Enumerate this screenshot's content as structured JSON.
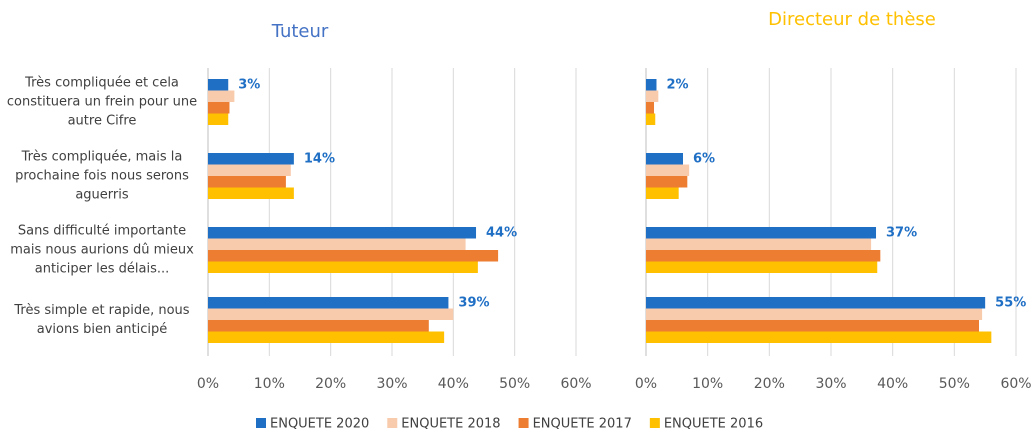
{
  "chart_data": [
    {
      "type": "hbar",
      "title": "Tuteur",
      "categories": [
        "Très compliquée et cela constituera un frein pour une autre Cifre",
        "Très compliquée, mais la prochaine fois nous serons aguerris",
        "Sans difficulté importante mais nous aurions dû mieux anticiper les délais...",
        "Très simple et rapide, nous avions bien anticipé"
      ],
      "series": [
        {
          "name": "ENQUETE 2020",
          "color": "#1f6fc5",
          "values": [
            3.3,
            14,
            43.7,
            39.2
          ],
          "value_labels": [
            "3%",
            "14%",
            "44%",
            "39%"
          ]
        },
        {
          "name": "ENQUETE 2018",
          "color": "#f8cbad",
          "values": [
            4.3,
            13.5,
            42,
            40
          ]
        },
        {
          "name": "ENQUETE 2017",
          "color": "#ed7d31",
          "values": [
            3.5,
            12.7,
            47.3,
            36
          ]
        },
        {
          "name": "ENQUETE 2016",
          "color": "#ffc000",
          "values": [
            3.3,
            14,
            44,
            38.5
          ]
        }
      ],
      "xlim": [
        0,
        60
      ],
      "xticks": [
        {
          "value": 0,
          "label": "0%"
        },
        {
          "value": 10,
          "label": "10%"
        },
        {
          "value": 20,
          "label": "20%"
        },
        {
          "value": 30,
          "label": "30%"
        },
        {
          "value": 40,
          "label": "40%"
        },
        {
          "value": 50,
          "label": "50%"
        },
        {
          "value": 60,
          "label": "60%"
        }
      ],
      "grid": true,
      "legend": "bottom",
      "title_color": "#4472c4"
    },
    {
      "type": "hbar",
      "title": "Directeur de thèse",
      "series": [
        {
          "color": "#1f6fc5",
          "values": [
            1.7,
            6,
            37.3,
            55
          ],
          "value_labels": [
            "2%",
            "6%",
            "37%",
            "55%"
          ]
        },
        {
          "color": "#f8cbad",
          "values": [
            2,
            7,
            36.5,
            54.5
          ]
        },
        {
          "color": "#ed7d31",
          "values": [
            1.3,
            6.7,
            38,
            54
          ]
        },
        {
          "color": "#ffc000",
          "values": [
            1.5,
            5.3,
            37.5,
            56
          ]
        }
      ],
      "xlim": [
        0,
        60
      ],
      "xticks": [
        {
          "value": 0,
          "label": "0%"
        },
        {
          "value": 10,
          "label": "10%"
        },
        {
          "value": 20,
          "label": "20%"
        },
        {
          "value": 30,
          "label": "30%"
        },
        {
          "value": 40,
          "label": "40%"
        },
        {
          "value": 50,
          "label": "50%"
        },
        {
          "value": 60,
          "label": "60%"
        }
      ],
      "grid": true,
      "title_color": "#ffc000"
    }
  ]
}
